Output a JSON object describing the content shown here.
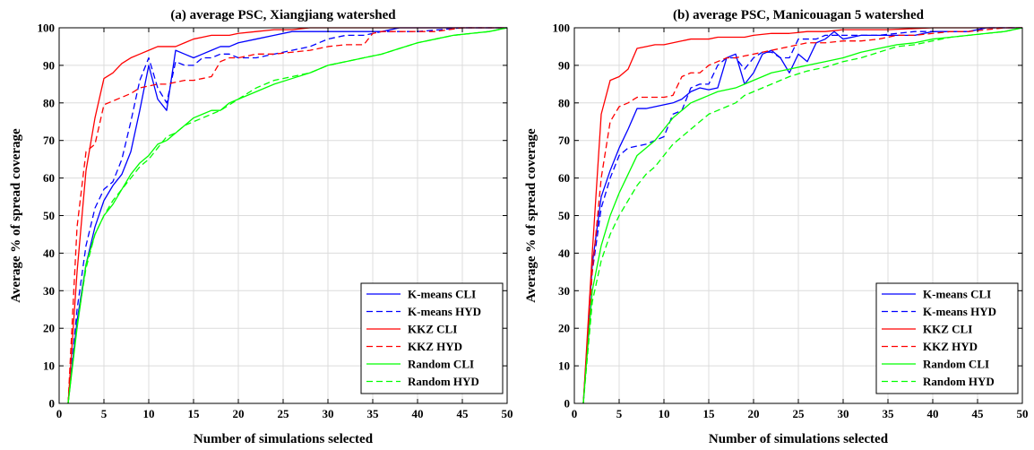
{
  "chart_data": [
    {
      "type": "line",
      "title": "(a) average PSC, Xiangjiang watershed",
      "xlabel": "Number of simulations selected",
      "ylabel": "Average % of spread coverage",
      "xlim": [
        0,
        50
      ],
      "ylim": [
        0,
        100
      ],
      "xticks": [
        "0",
        "5",
        "10",
        "15",
        "20",
        "25",
        "30",
        "35",
        "40",
        "45",
        "50"
      ],
      "yticks": [
        "0",
        "10",
        "20",
        "30",
        "40",
        "50",
        "60",
        "70",
        "80",
        "90",
        "100"
      ],
      "grid": true,
      "legend_position": "bottom-right",
      "series": [
        {
          "name": "K-means CLI",
          "color": "#0000ff",
          "dash": "solid",
          "x": [
            1,
            2,
            3,
            4,
            5,
            6,
            7,
            8,
            9,
            10,
            11,
            12,
            13,
            14,
            15,
            16,
            17,
            18,
            19,
            20,
            22,
            24,
            26,
            28,
            30,
            32,
            34,
            36,
            38,
            40,
            45,
            50
          ],
          "y": [
            0,
            22,
            37,
            47,
            54,
            58,
            61,
            67,
            78,
            90,
            81,
            78,
            94,
            93,
            92,
            93,
            94,
            95,
            95,
            96,
            97,
            98,
            99,
            99,
            99,
            99,
            99,
            99,
            100,
            100,
            100,
            100
          ]
        },
        {
          "name": "K-means HYD",
          "color": "#0000ff",
          "dash": "dashed",
          "x": [
            1,
            2,
            3,
            4,
            5,
            6,
            7,
            8,
            9,
            10,
            11,
            12,
            13,
            14,
            15,
            16,
            17,
            18,
            19,
            20,
            22,
            24,
            26,
            28,
            30,
            32,
            34,
            36,
            38,
            40,
            45,
            50
          ],
          "y": [
            0,
            25,
            42,
            52,
            57,
            59,
            65,
            75,
            86,
            92,
            84,
            80,
            91,
            90,
            90,
            92,
            92,
            93,
            93,
            92,
            92,
            93,
            94,
            95,
            97,
            98,
            98,
            99,
            99,
            99,
            100,
            100
          ]
        },
        {
          "name": "KKZ CLI",
          "color": "#ff0000",
          "dash": "solid",
          "x": [
            1,
            2,
            3,
            4,
            5,
            6,
            7,
            8,
            9,
            10,
            11,
            12,
            13,
            14,
            15,
            16,
            17,
            18,
            19,
            20,
            22,
            24,
            26,
            28,
            30,
            35,
            40,
            45,
            50
          ],
          "y": [
            0,
            35,
            62,
            76,
            86.5,
            88,
            90.5,
            92,
            93,
            94,
            95,
            95,
            95,
            96,
            97,
            97.5,
            98,
            98,
            98,
            98.5,
            99,
            99.5,
            99.5,
            100,
            100,
            100,
            100,
            100,
            100
          ]
        },
        {
          "name": "KKZ HYD",
          "color": "#ff0000",
          "dash": "dashed",
          "x": [
            1,
            2,
            3,
            4,
            5,
            6,
            7,
            8,
            9,
            10,
            11,
            12,
            13,
            14,
            15,
            16,
            17,
            18,
            19,
            20,
            22,
            24,
            26,
            28,
            30,
            32,
            34,
            35,
            36,
            38,
            40,
            42,
            45,
            50
          ],
          "y": [
            0,
            47,
            67,
            69,
            79.5,
            80.5,
            81.5,
            82.5,
            84,
            84.5,
            85,
            85,
            85.5,
            86,
            86,
            86.5,
            87,
            91,
            92,
            92,
            93,
            93,
            93.5,
            94,
            95,
            95.5,
            95.5,
            98.5,
            99,
            99,
            99,
            99,
            100,
            100
          ]
        },
        {
          "name": "Random CLI",
          "color": "#00ff00",
          "dash": "solid",
          "x": [
            1,
            2,
            3,
            4,
            5,
            6,
            7,
            8,
            9,
            10,
            11,
            12,
            13,
            14,
            15,
            16,
            17,
            18,
            19,
            20,
            22,
            24,
            26,
            28,
            30,
            32,
            34,
            36,
            38,
            40,
            42,
            44,
            46,
            48,
            50
          ],
          "y": [
            0,
            20,
            37,
            45,
            50,
            53,
            57,
            61,
            64,
            66,
            69,
            70,
            72,
            74,
            76,
            77,
            78,
            78,
            80,
            81,
            83,
            85,
            86.5,
            88,
            90,
            91,
            92,
            93,
            94.5,
            96,
            97,
            98,
            98.5,
            99,
            100
          ]
        },
        {
          "name": "Random HYD",
          "color": "#00ff00",
          "dash": "dashed",
          "x": [
            1,
            2,
            3,
            4,
            5,
            6,
            7,
            8,
            9,
            10,
            11,
            12,
            13,
            14,
            15,
            16,
            17,
            18,
            19,
            20,
            22,
            24,
            26,
            28,
            30,
            32,
            34,
            36,
            38,
            40,
            42,
            44,
            46,
            48,
            50
          ],
          "y": [
            0,
            21,
            36,
            45,
            50,
            54,
            57,
            60,
            63,
            65,
            68,
            71,
            72,
            74,
            75,
            76,
            77,
            78,
            79.5,
            81,
            84,
            86,
            87,
            88,
            90,
            91,
            92,
            93,
            94.5,
            96,
            97,
            98,
            98.5,
            99,
            100
          ]
        }
      ]
    },
    {
      "type": "line",
      "title": "(b) average PSC, Manicouagan 5 watershed",
      "xlabel": "Number of simulations selected",
      "ylabel": "Average % of spread coverage",
      "xlim": [
        0,
        50
      ],
      "ylim": [
        0,
        100
      ],
      "xticks": [
        "0",
        "5",
        "10",
        "15",
        "20",
        "25",
        "30",
        "35",
        "40",
        "45",
        "50"
      ],
      "yticks": [
        "0",
        "10",
        "20",
        "30",
        "40",
        "50",
        "60",
        "70",
        "80",
        "90",
        "100"
      ],
      "grid": true,
      "legend_position": "bottom-right",
      "series": [
        {
          "name": "K-means CLI",
          "color": "#0000ff",
          "dash": "solid",
          "x": [
            1,
            2,
            3,
            4,
            5,
            6,
            7,
            8,
            9,
            10,
            11,
            12,
            13,
            14,
            15,
            16,
            17,
            18,
            19,
            20,
            21,
            22,
            23,
            24,
            25,
            26,
            27,
            28,
            29,
            30,
            32,
            34,
            36,
            38,
            40,
            42,
            44,
            46,
            48,
            50
          ],
          "y": [
            0,
            37,
            55,
            62,
            68,
            73,
            78.5,
            78.5,
            79,
            79.5,
            80,
            81,
            83,
            84,
            83.5,
            84,
            92,
            93,
            85,
            88,
            93,
            94,
            92,
            88,
            93,
            91,
            96,
            97,
            99,
            97,
            98,
            98,
            98,
            98,
            99,
            99,
            99,
            100,
            100,
            100
          ]
        },
        {
          "name": "K-means HYD",
          "color": "#0000ff",
          "dash": "dashed",
          "x": [
            1,
            2,
            3,
            4,
            5,
            6,
            7,
            8,
            9,
            10,
            11,
            12,
            13,
            14,
            15,
            16,
            17,
            18,
            19,
            20,
            21,
            22,
            23,
            24,
            25,
            26,
            27,
            28,
            30,
            32,
            34,
            36,
            38,
            40,
            42,
            44,
            46,
            48,
            50
          ],
          "y": [
            0,
            35,
            52,
            60,
            66,
            68,
            68.5,
            69,
            70,
            71,
            77,
            78,
            84,
            85,
            85,
            90,
            92,
            92,
            89,
            92,
            93.5,
            93.5,
            92,
            92,
            97,
            97,
            97,
            98,
            98,
            98,
            98,
            98.5,
            99,
            99,
            99,
            99,
            100,
            100,
            100
          ]
        },
        {
          "name": "KKZ CLI",
          "color": "#ff0000",
          "dash": "solid",
          "x": [
            1,
            2,
            3,
            4,
            5,
            6,
            7,
            8,
            9,
            10,
            11,
            12,
            13,
            14,
            15,
            16,
            17,
            18,
            19,
            20,
            22,
            24,
            26,
            28,
            30,
            35,
            40,
            45,
            50
          ],
          "y": [
            0,
            40,
            77,
            86,
            87,
            89,
            94.5,
            95,
            95.5,
            95.5,
            96,
            96.5,
            97,
            97,
            97,
            97.5,
            97.5,
            97.5,
            97.5,
            98,
            98.5,
            98.5,
            99,
            99,
            99.5,
            99.5,
            100,
            100,
            100
          ]
        },
        {
          "name": "KKZ HYD",
          "color": "#ff0000",
          "dash": "dashed",
          "x": [
            1,
            2,
            3,
            4,
            5,
            6,
            7,
            8,
            9,
            10,
            11,
            12,
            13,
            14,
            15,
            16,
            17,
            18,
            19,
            20,
            22,
            24,
            26,
            28,
            30,
            32,
            34,
            36,
            38,
            40,
            42,
            44,
            46,
            48,
            50
          ],
          "y": [
            0,
            35,
            60,
            75,
            79,
            80,
            81.5,
            81.5,
            81.5,
            81.5,
            82,
            87,
            88,
            88,
            90,
            91,
            92,
            92,
            92.5,
            93,
            94,
            95,
            96,
            96,
            96.5,
            96.5,
            97,
            98,
            98,
            98.5,
            99,
            99,
            99.5,
            100,
            100
          ]
        },
        {
          "name": "Random CLI",
          "color": "#00ff00",
          "dash": "solid",
          "x": [
            1,
            2,
            3,
            4,
            5,
            6,
            7,
            8,
            9,
            10,
            11,
            12,
            13,
            14,
            15,
            16,
            17,
            18,
            19,
            20,
            22,
            24,
            26,
            28,
            30,
            32,
            34,
            36,
            38,
            40,
            42,
            44,
            46,
            48,
            50
          ],
          "y": [
            0,
            30,
            42,
            50,
            56,
            61,
            66,
            68,
            70,
            73,
            76,
            78,
            80,
            81,
            82,
            83,
            83.5,
            84,
            85,
            86,
            88,
            89,
            90,
            91,
            92,
            93.5,
            94.5,
            95.5,
            96,
            97,
            97.5,
            98,
            98.5,
            99,
            100
          ]
        },
        {
          "name": "Random HYD",
          "color": "#00ff00",
          "dash": "dashed",
          "x": [
            1,
            2,
            3,
            4,
            5,
            6,
            7,
            8,
            9,
            10,
            11,
            12,
            13,
            14,
            15,
            16,
            17,
            18,
            19,
            20,
            22,
            24,
            26,
            28,
            30,
            32,
            34,
            36,
            38,
            40,
            42,
            44,
            46,
            48,
            50
          ],
          "y": [
            0,
            27,
            38,
            45,
            50,
            54,
            58,
            61,
            63,
            66,
            69,
            71,
            73,
            75,
            77,
            78,
            79,
            80,
            82,
            83,
            85,
            87,
            88.5,
            89.5,
            91,
            92,
            93.5,
            95,
            95.5,
            96.5,
            97.5,
            98,
            98.5,
            99,
            100
          ]
        }
      ]
    }
  ]
}
